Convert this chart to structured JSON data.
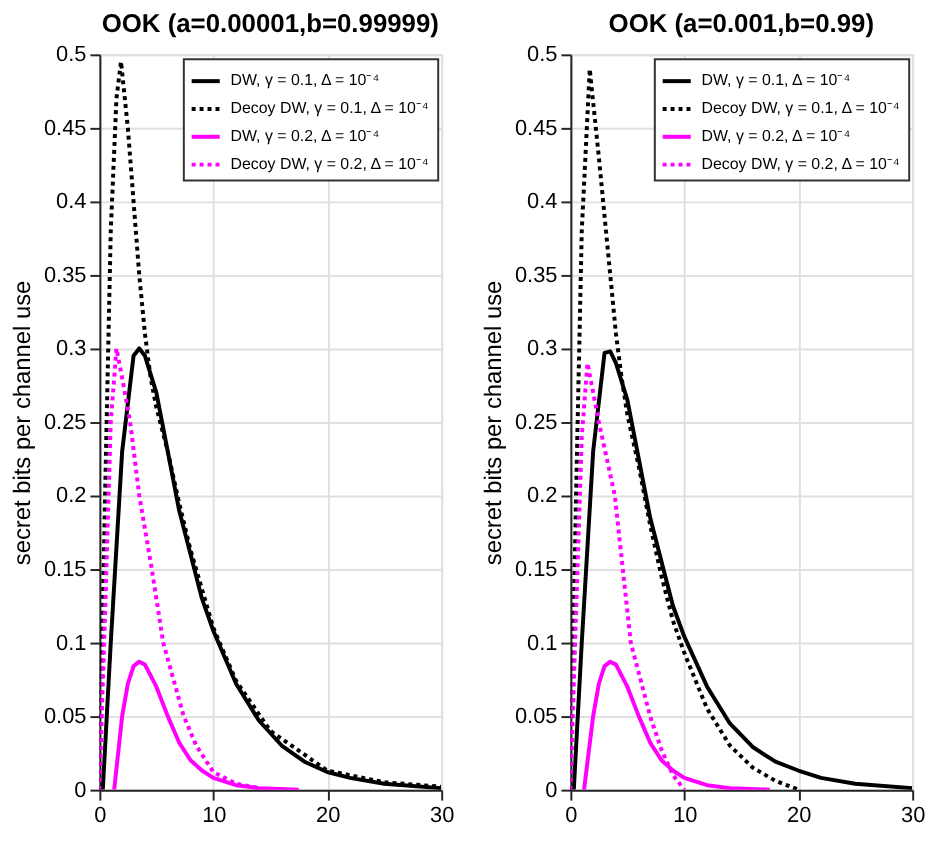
{
  "chart_data": [
    {
      "type": "line",
      "title": "OOK (a=0.00001,b=0.99999)",
      "ylabel": "secret bits per channel use",
      "xlim": [
        0,
        30
      ],
      "xticks": [
        0,
        10,
        20,
        30
      ],
      "ylim": [
        0,
        0.5
      ],
      "yticks": [
        0,
        0.05,
        0.1,
        0.15,
        0.2,
        0.25,
        0.3,
        0.35,
        0.4,
        0.45,
        0.5
      ],
      "grid": true,
      "legend": "top right",
      "marker": "none",
      "series": [
        {
          "name": "DW, γ = 0.1, Δ = 10⁻⁴",
          "color": "#000000",
          "line_style": "solid",
          "x": [
            0.3,
            1,
            2,
            3,
            3.5,
            4,
            5,
            6,
            7,
            8,
            9,
            10,
            12,
            14,
            16,
            18,
            20,
            22,
            25,
            30
          ],
          "values": [
            0,
            0.1,
            0.23,
            0.295,
            0.3,
            0.295,
            0.27,
            0.23,
            0.19,
            0.16,
            0.13,
            0.108,
            0.072,
            0.047,
            0.03,
            0.019,
            0.012,
            0.008,
            0.004,
            0.001
          ]
        },
        {
          "name": "Decoy DW, γ = 0.1, Δ = 10⁻⁴",
          "color": "#000000",
          "line_style": "dotted",
          "x": [
            0,
            0.5,
            1,
            1.5,
            1.9,
            2.5,
            3,
            3.5,
            4,
            4.5,
            5,
            6,
            7,
            8,
            10,
            12,
            15,
            20,
            25,
            30
          ],
          "values": [
            0,
            0.2,
            0.38,
            0.47,
            0.495,
            0.45,
            0.4,
            0.35,
            0.31,
            0.28,
            0.26,
            0.23,
            0.195,
            0.163,
            0.11,
            0.074,
            0.04,
            0.013,
            0.005,
            0.002
          ]
        },
        {
          "name": "DW, γ = 0.2, Δ = 10⁻⁴",
          "color": "#ff00ff",
          "line_style": "solid",
          "x": [
            1.3,
            2,
            2.5,
            3,
            3.5,
            4,
            5,
            6,
            7,
            8,
            9,
            10,
            12,
            14,
            17.5
          ],
          "values": [
            0,
            0.05,
            0.072,
            0.084,
            0.087,
            0.085,
            0.07,
            0.05,
            0.032,
            0.02,
            0.013,
            0.008,
            0.003,
            0.001,
            0
          ]
        },
        {
          "name": "Decoy DW, γ = 0.2, Δ = 10⁻⁴",
          "color": "#ff00ff",
          "line_style": "dotted",
          "x": [
            0,
            0.5,
            1,
            1.5,
            2,
            2.7,
            3.5,
            4.6,
            5.6,
            7.4,
            8.5,
            10,
            12,
            14
          ],
          "values": [
            0,
            0.12,
            0.25,
            0.3,
            0.28,
            0.25,
            0.2,
            0.15,
            0.1,
            0.05,
            0.03,
            0.012,
            0.004,
            0.001
          ]
        }
      ]
    },
    {
      "type": "line",
      "title": "OOK (a=0.001,b=0.99)",
      "ylabel": "secret bits per channel use",
      "xlim": [
        0,
        30
      ],
      "xticks": [
        0,
        10,
        20,
        30
      ],
      "ylim": [
        0,
        0.5
      ],
      "yticks": [
        0,
        0.05,
        0.1,
        0.15,
        0.2,
        0.25,
        0.3,
        0.35,
        0.4,
        0.45,
        0.5
      ],
      "grid": true,
      "legend": "top right",
      "marker": "none",
      "series": [
        {
          "name": "DW, γ = 0.1, Δ = 10⁻⁴",
          "color": "#000000",
          "line_style": "solid",
          "x": [
            0.3,
            1,
            2,
            3,
            3.5,
            4,
            5,
            6,
            7,
            8,
            9,
            10,
            12,
            14,
            16,
            18,
            20,
            22,
            25,
            30
          ],
          "values": [
            0,
            0.1,
            0.23,
            0.297,
            0.298,
            0.29,
            0.265,
            0.225,
            0.185,
            0.155,
            0.125,
            0.104,
            0.07,
            0.045,
            0.029,
            0.019,
            0.013,
            0.008,
            0.004,
            0.001
          ]
        },
        {
          "name": "Decoy DW, γ = 0.1, Δ = 10⁻⁴",
          "color": "#000000",
          "line_style": "dotted",
          "x": [
            0,
            0.5,
            1,
            1.7,
            2.5,
            3,
            3.5,
            4,
            4.5,
            5,
            6,
            7,
            8,
            9,
            10,
            12,
            14,
            16,
            18,
            20
          ],
          "values": [
            0,
            0.2,
            0.38,
            0.49,
            0.43,
            0.39,
            0.35,
            0.31,
            0.28,
            0.255,
            0.22,
            0.18,
            0.145,
            0.115,
            0.093,
            0.055,
            0.03,
            0.015,
            0.006,
            0
          ]
        },
        {
          "name": "DW, γ = 0.2, Δ = 10⁻⁴",
          "color": "#ff00ff",
          "line_style": "solid",
          "x": [
            1.2,
            2,
            2.5,
            3,
            3.5,
            4,
            5,
            6,
            7,
            8,
            9,
            10,
            12,
            14,
            17.5
          ],
          "values": [
            0,
            0.05,
            0.072,
            0.084,
            0.087,
            0.085,
            0.07,
            0.05,
            0.032,
            0.02,
            0.013,
            0.008,
            0.003,
            0.001,
            0
          ]
        },
        {
          "name": "Decoy DW, γ = 0.2, Δ = 10⁻⁴",
          "color": "#ff00ff",
          "line_style": "dotted",
          "x": [
            0,
            0.5,
            1,
            1.5,
            2,
            2.5,
            3.9,
            4.6,
            5.3,
            7,
            8,
            9,
            10
          ],
          "values": [
            0,
            0.12,
            0.24,
            0.29,
            0.27,
            0.25,
            0.2,
            0.15,
            0.1,
            0.05,
            0.027,
            0.01,
            0
          ]
        }
      ]
    }
  ]
}
